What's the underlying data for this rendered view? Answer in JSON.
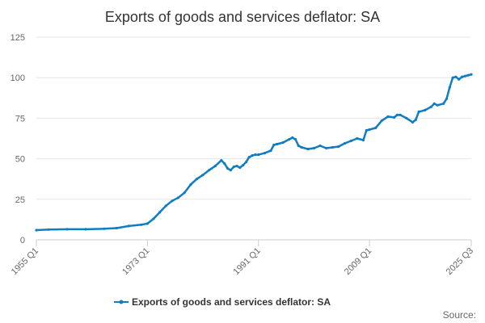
{
  "chart_data": {
    "type": "line",
    "title": "Exports of goods and services deflator: SA",
    "xlabel": "",
    "ylabel": "",
    "x_ticks": [
      "1955 Q1",
      "1973 Q1",
      "1991 Q1",
      "2009 Q1",
      "2025 Q3"
    ],
    "y_ticks": [
      0,
      25,
      50,
      75,
      100,
      125
    ],
    "ylim": [
      0,
      125
    ],
    "xlim": [
      "1955 Q1",
      "2025 Q3"
    ],
    "grid": true,
    "legend": "bottom-center",
    "source_label": "Source:",
    "series": [
      {
        "name": "Exports of goods and services deflator: SA",
        "color": "#0f7dc2",
        "points": [
          [
            "1955 Q1",
            6.0
          ],
          [
            "1957 Q1",
            6.3
          ],
          [
            "1960 Q1",
            6.5
          ],
          [
            "1963 Q1",
            6.5
          ],
          [
            "1966 Q1",
            6.8
          ],
          [
            "1968 Q1",
            7.2
          ],
          [
            "1970 Q1",
            8.5
          ],
          [
            "1972 Q1",
            9.3
          ],
          [
            "1973 Q1",
            10.0
          ],
          [
            "1974 Q1",
            13.0
          ],
          [
            "1975 Q1",
            17.0
          ],
          [
            "1976 Q1",
            21.0
          ],
          [
            "1977 Q1",
            24.0
          ],
          [
            "1978 Q1",
            26.0
          ],
          [
            "1979 Q1",
            29.0
          ],
          [
            "1980 Q1",
            34.0
          ],
          [
            "1981 Q1",
            37.5
          ],
          [
            "1982 Q1",
            40.0
          ],
          [
            "1983 Q1",
            43.0
          ],
          [
            "1984 Q1",
            45.5
          ],
          [
            "1985 Q1",
            49.0
          ],
          [
            "1985 Q3",
            47.0
          ],
          [
            "1986 Q1",
            44.0
          ],
          [
            "1986 Q3",
            43.0
          ],
          [
            "1987 Q1",
            45.0
          ],
          [
            "1987 Q3",
            45.5
          ],
          [
            "1988 Q1",
            44.5
          ],
          [
            "1988 Q3",
            46.0
          ],
          [
            "1989 Q1",
            48.0
          ],
          [
            "1989 Q3",
            51.0
          ],
          [
            "1990 Q1",
            52.0
          ],
          [
            "1990 Q3",
            52.5
          ],
          [
            "1991 Q1",
            52.5
          ],
          [
            "1992 Q1",
            53.5
          ],
          [
            "1993 Q1",
            55.0
          ],
          [
            "1993 Q3",
            58.5
          ],
          [
            "1994 Q1",
            59.0
          ],
          [
            "1995 Q1",
            60.0
          ],
          [
            "1996 Q1",
            62.0
          ],
          [
            "1996 Q3",
            63.0
          ],
          [
            "1997 Q1",
            62.0
          ],
          [
            "1997 Q3",
            58.0
          ],
          [
            "1998 Q1",
            57.0
          ],
          [
            "1999 Q1",
            56.0
          ],
          [
            "2000 Q1",
            56.5
          ],
          [
            "2001 Q1",
            58.0
          ],
          [
            "2002 Q1",
            56.5
          ],
          [
            "2003 Q1",
            57.0
          ],
          [
            "2004 Q1",
            57.5
          ],
          [
            "2005 Q1",
            59.5
          ],
          [
            "2006 Q1",
            61.0
          ],
          [
            "2007 Q1",
            62.5
          ],
          [
            "2008 Q1",
            61.5
          ],
          [
            "2008 Q3",
            67.5
          ],
          [
            "2009 Q1",
            68.0
          ],
          [
            "2010 Q1",
            69.0
          ],
          [
            "2011 Q1",
            73.5
          ],
          [
            "2012 Q1",
            76.0
          ],
          [
            "2013 Q1",
            75.5
          ],
          [
            "2013 Q3",
            77.0
          ],
          [
            "2014 Q1",
            77.0
          ],
          [
            "2015 Q1",
            75.0
          ],
          [
            "2016 Q1",
            72.5
          ],
          [
            "2016 Q3",
            74.0
          ],
          [
            "2017 Q1",
            79.0
          ],
          [
            "2018 Q1",
            80.0
          ],
          [
            "2019 Q1",
            82.0
          ],
          [
            "2019 Q3",
            84.0
          ],
          [
            "2020 Q1",
            83.0
          ],
          [
            "2021 Q1",
            84.0
          ],
          [
            "2021 Q3",
            87.0
          ],
          [
            "2022 Q1",
            94.0
          ],
          [
            "2022 Q3",
            100.0
          ],
          [
            "2023 Q1",
            100.5
          ],
          [
            "2023 Q3",
            99.0
          ],
          [
            "2024 Q1",
            100.5
          ],
          [
            "2024 Q3",
            101.0
          ],
          [
            "2025 Q1",
            101.5
          ],
          [
            "2025 Q3",
            102.0
          ]
        ]
      }
    ]
  }
}
